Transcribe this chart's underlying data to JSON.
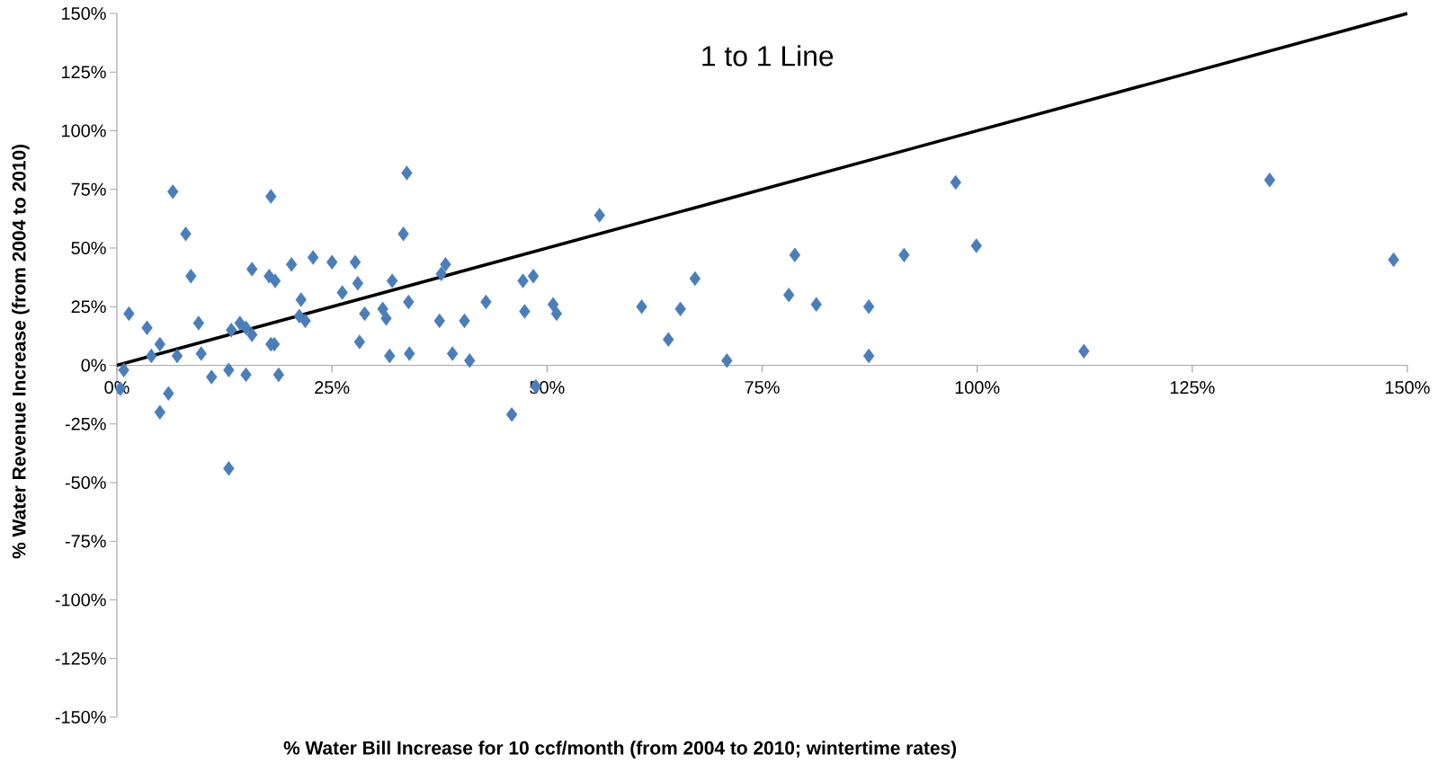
{
  "chart_data": {
    "type": "scatter",
    "xlabel": "% Water Bill Increase for 10 ccf/month (from 2004 to 2010; wintertime rates)",
    "ylabel": "% Water Revenue Increase (from 2004 to 2010)",
    "annotations": [
      "1 to 1 Line"
    ],
    "xlim": [
      0,
      150
    ],
    "ylim": [
      -150,
      150
    ],
    "xticks": [
      {
        "value": 0,
        "label": "0%"
      },
      {
        "value": 25,
        "label": "25%"
      },
      {
        "value": 50,
        "label": "50%"
      },
      {
        "value": 75,
        "label": "75%"
      },
      {
        "value": 100,
        "label": "100%"
      },
      {
        "value": 125,
        "label": "125%"
      },
      {
        "value": 150,
        "label": "150%"
      }
    ],
    "yticks": [
      {
        "value": -150,
        "label": "-150%"
      },
      {
        "value": -125,
        "label": "-125%"
      },
      {
        "value": -100,
        "label": "-100%"
      },
      {
        "value": -75,
        "label": "-75%"
      },
      {
        "value": -50,
        "label": "-50%"
      },
      {
        "value": -25,
        "label": "-25%"
      },
      {
        "value": 0,
        "label": "0%"
      },
      {
        "value": 25,
        "label": "25%"
      },
      {
        "value": 50,
        "label": "50%"
      },
      {
        "value": 75,
        "label": "75%"
      },
      {
        "value": 100,
        "label": "100%"
      },
      {
        "value": 125,
        "label": "125%"
      },
      {
        "value": 150,
        "label": "150%"
      }
    ],
    "marker": "diamond",
    "series": [
      {
        "color": "#4a7ebb",
        "x": [
          0.4,
          0.8,
          1.4,
          3.5,
          4,
          5,
          5,
          6,
          6.5,
          7,
          8,
          8.6,
          9.5,
          9.8,
          11,
          13,
          13,
          13.3,
          14.3,
          15,
          15,
          15.7,
          15.7,
          17.7,
          17.9,
          17.9,
          18.3,
          18.4,
          18.8,
          20.3,
          21.2,
          21.4,
          21.9,
          22.8,
          25,
          26.2,
          27.7,
          28,
          28.2,
          28.8,
          30.9,
          31.3,
          31.7,
          32,
          33.3,
          33.7,
          33.9,
          34,
          37.5,
          37.7,
          38.2,
          39,
          40.4,
          41,
          42.9,
          45.9,
          47.2,
          47.4,
          48.4,
          48.7,
          50.7,
          51.1,
          56.1,
          61,
          64.1,
          65.5,
          67.2,
          70.9,
          78.1,
          78.8,
          81.3,
          87.4,
          87.4,
          91.5,
          97.5,
          99.9,
          112.4,
          134,
          148.4
        ],
        "values": [
          -10,
          -2,
          22,
          16,
          4,
          9,
          -20,
          -12,
          74,
          4,
          56,
          38,
          18,
          5,
          -5,
          -44,
          -2,
          15,
          18,
          16,
          -4,
          13,
          41,
          38,
          72,
          9,
          9,
          36,
          -4,
          43,
          21,
          28,
          19,
          46,
          44,
          31,
          44,
          35,
          10,
          22,
          24,
          20,
          4,
          36,
          56,
          82,
          27,
          5,
          19,
          39,
          43,
          5,
          19,
          2,
          27,
          -21,
          36,
          23,
          38,
          -9,
          26,
          22,
          64,
          25,
          11,
          24,
          37,
          2,
          30,
          47,
          26,
          25,
          4,
          47,
          78,
          51,
          6,
          79,
          45
        ]
      },
      {
        "type": "line",
        "color": "#000000",
        "marker": "none",
        "x": [
          0,
          150
        ],
        "values": [
          0,
          150
        ]
      }
    ]
  }
}
